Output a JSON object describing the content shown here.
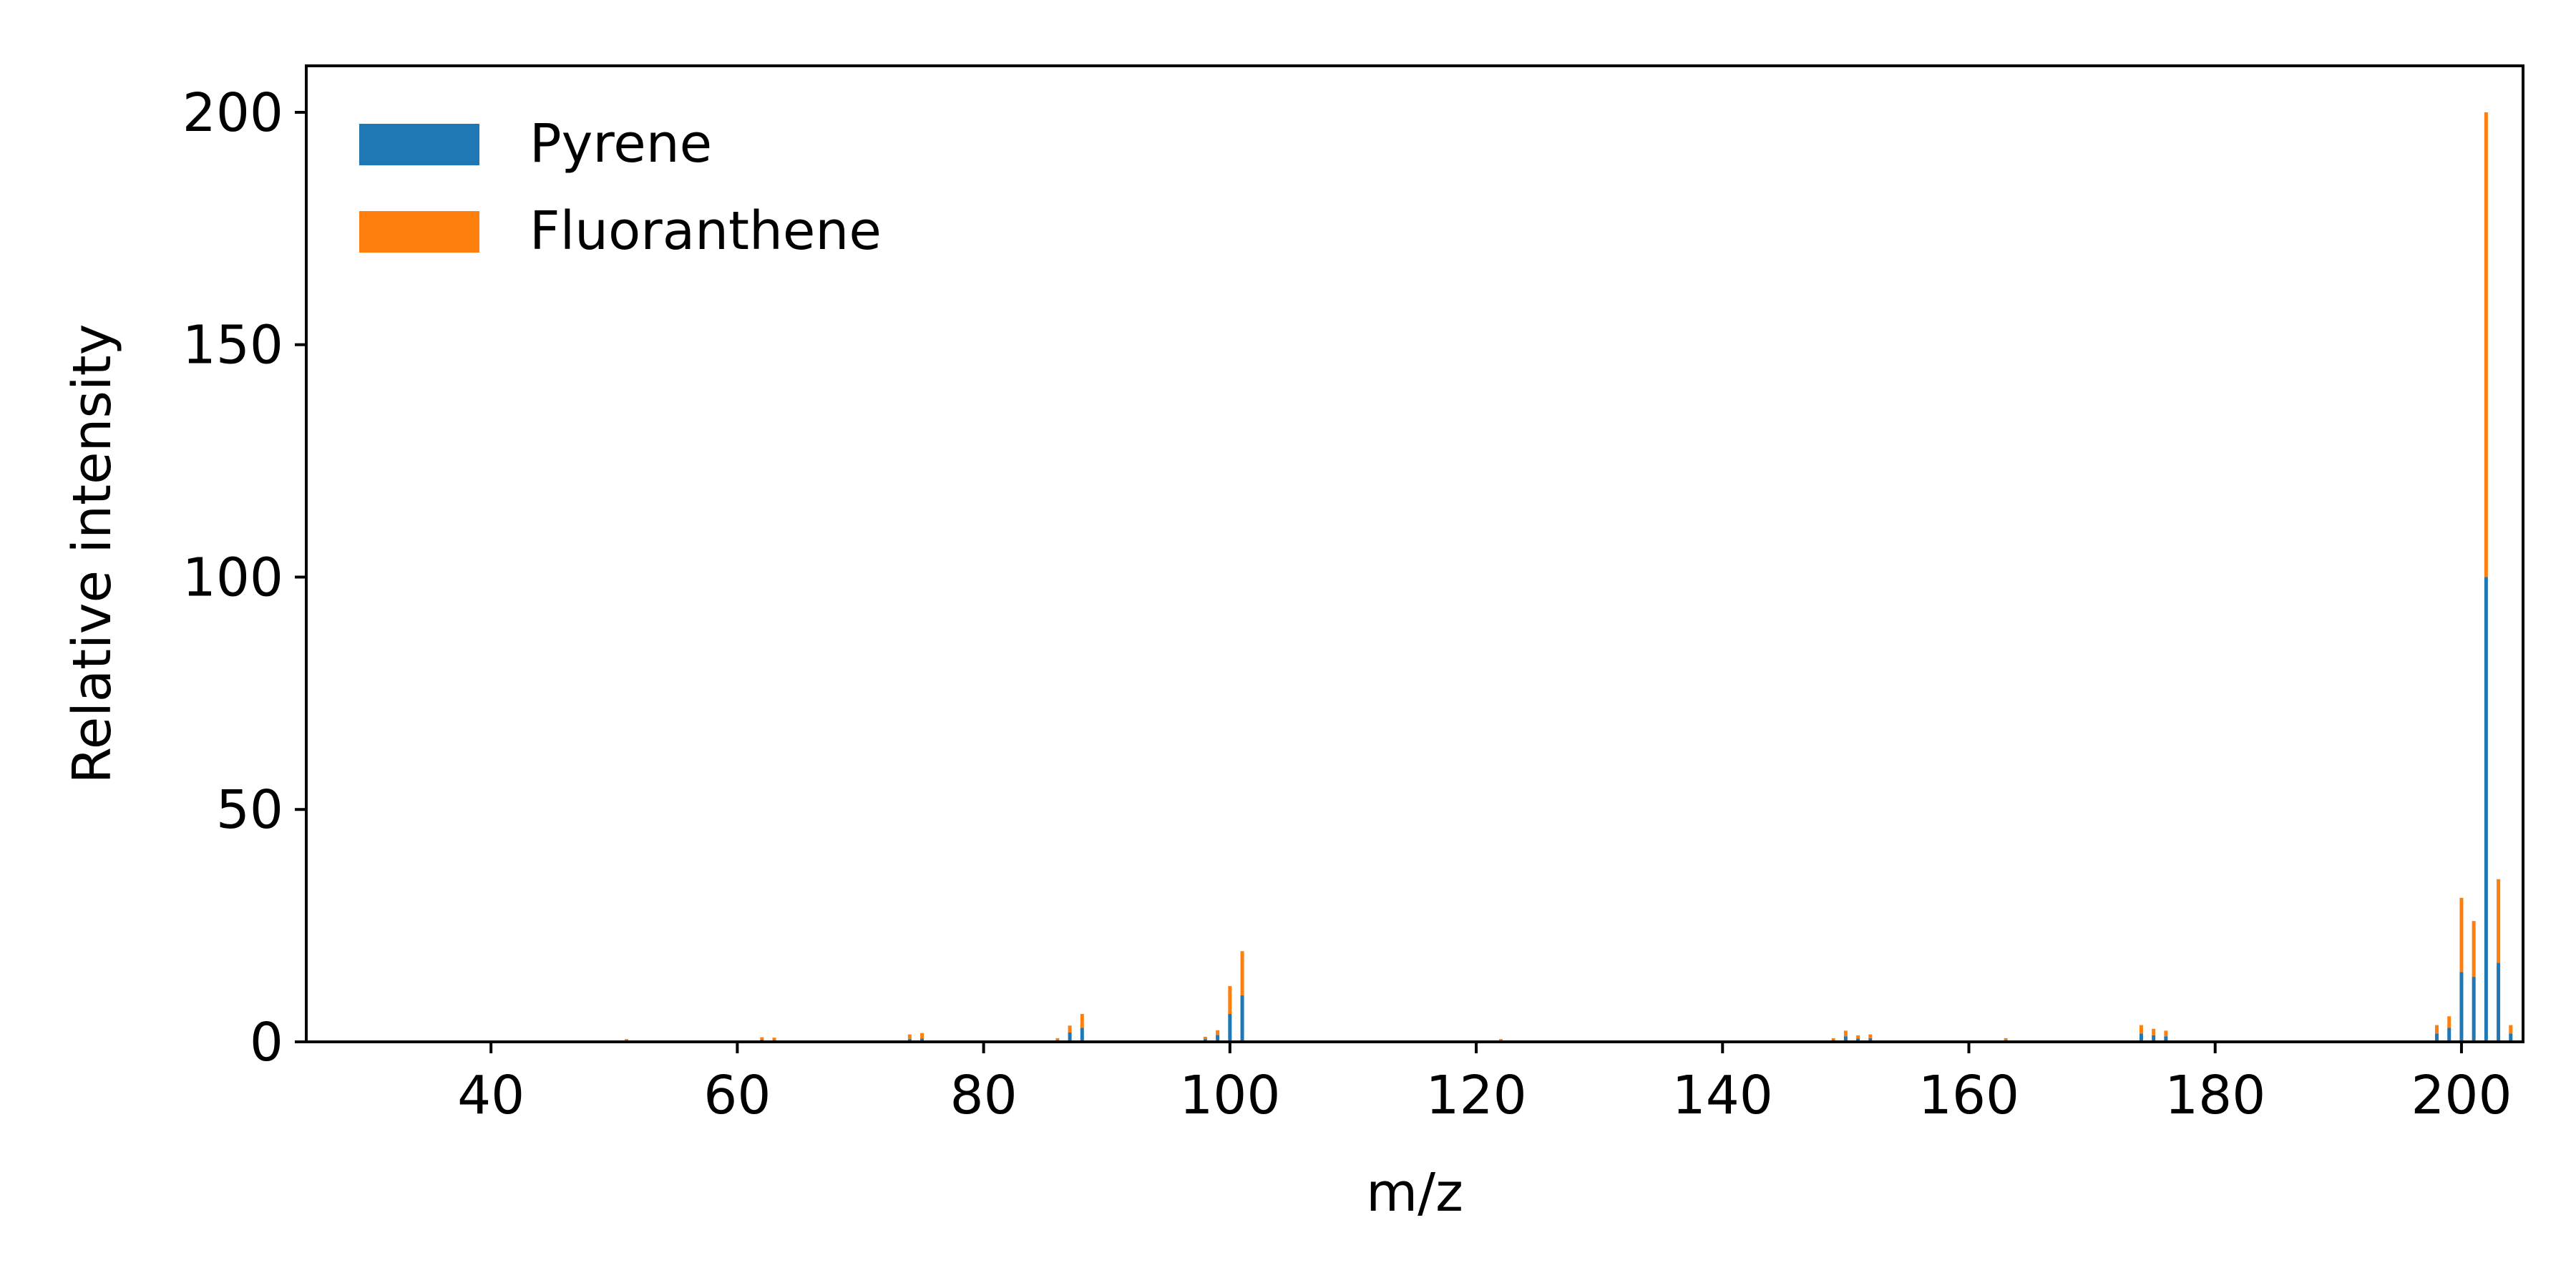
{
  "chart_data": {
    "type": "bar",
    "stacked": true,
    "title": "",
    "xlabel": "m/z",
    "ylabel": "Relative intensity",
    "xlim": [
      25,
      205
    ],
    "ylim": [
      0,
      210
    ],
    "xticks": [
      40,
      60,
      80,
      100,
      120,
      140,
      160,
      180,
      200
    ],
    "yticks": [
      0,
      50,
      100,
      150,
      200
    ],
    "grid": false,
    "legend_position": "top-left",
    "x": [
      51,
      62,
      63,
      74,
      75,
      86,
      87,
      88,
      98,
      99,
      100,
      101,
      122,
      149,
      150,
      151,
      152,
      163,
      174,
      175,
      176,
      198,
      199,
      200,
      201,
      202,
      203,
      204
    ],
    "series": [
      {
        "name": "Pyrene",
        "color": "#1f77b4",
        "values": [
          0.3,
          0.5,
          0.4,
          0.6,
          0.7,
          0.4,
          2.0,
          3.0,
          0.6,
          1.5,
          6.0,
          10.0,
          0.3,
          0.4,
          1.2,
          0.7,
          0.8,
          0.4,
          1.8,
          1.4,
          1.2,
          1.8,
          3.0,
          15.0,
          14.0,
          100.0,
          17.0,
          1.8
        ]
      },
      {
        "name": "Fluoranthene",
        "color": "#ff7f0e",
        "values": [
          0.3,
          0.5,
          0.5,
          1.0,
          1.2,
          0.4,
          1.5,
          3.0,
          0.5,
          1.0,
          6.0,
          9.5,
          0.3,
          0.4,
          1.2,
          0.7,
          0.8,
          0.4,
          1.8,
          1.4,
          1.2,
          1.8,
          2.5,
          16.0,
          12.0,
          100.0,
          18.0,
          1.8
        ]
      }
    ]
  }
}
